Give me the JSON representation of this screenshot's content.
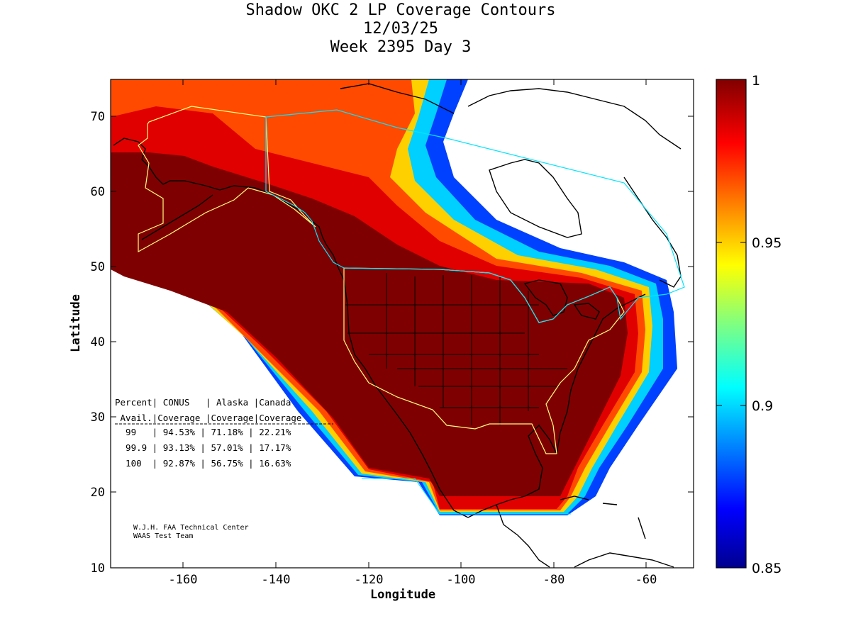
{
  "title": {
    "line1": "Shadow OKC 2 LP Coverage Contours",
    "line2": "12/03/25",
    "line3": "Week 2395 Day 3"
  },
  "axes": {
    "xlabel": "Longitude",
    "ylabel": "Latitude",
    "xticks": [
      "-160",
      "-140",
      "-120",
      "-100",
      "-80",
      "-60"
    ],
    "yticks": [
      "70",
      "60",
      "50",
      "40",
      "30",
      "20",
      "10"
    ],
    "xlim": [
      -175,
      -50
    ],
    "ylim": [
      10,
      75
    ]
  },
  "colorbar": {
    "ticks": [
      "1",
      "0.95",
      "0.9",
      "0.85"
    ],
    "range": [
      0.85,
      1.0
    ],
    "colormap": "jet"
  },
  "table": {
    "header1": "Percent| CONUS   | Alaska |Canada",
    "header2": " Avail.|Coverage |Coverage|Coverage",
    "rows": [
      "  99   | 94.53% | 71.18% | 22.21%",
      "  99.9 | 93.13% | 57.01% | 17.17%",
      "  100  | 92.87% | 56.75% | 16.63%"
    ]
  },
  "credit": {
    "line1": "W.J.H. FAA Technical Center",
    "line2": "WAAS Test Team"
  },
  "colors": {
    "full_coverage": "#7f0000",
    "conus_boundary": "#ffff80",
    "canada_boundary": "#00e5ff",
    "coastline": "#000000"
  }
}
